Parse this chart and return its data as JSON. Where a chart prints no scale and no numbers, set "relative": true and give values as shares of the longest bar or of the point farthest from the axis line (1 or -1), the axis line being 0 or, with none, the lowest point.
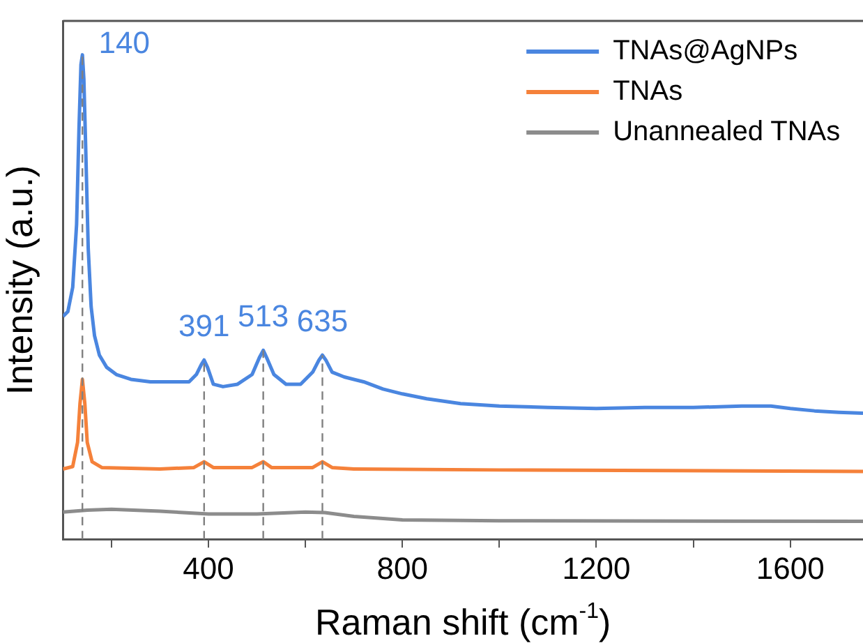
{
  "chart_data": {
    "type": "line",
    "relative": true,
    "xlabel": "Raman shift (cm$^{-1}$)",
    "ylabel": "Intensity (a.u.)",
    "xlim": [
      100,
      1750
    ],
    "xticks": [
      {
        "value": 200,
        "label": null
      },
      400,
      {
        "value": 600,
        "label": null
      },
      800,
      {
        "value": 1000,
        "label": null
      },
      1200,
      {
        "value": 1400,
        "label": null
      },
      1600
    ],
    "legend": "top right",
    "marker": "none",
    "line_style": "solid",
    "grid": false,
    "series": [
      {
        "name": "TNAs@AgNPs",
        "color": "#4a86e0",
        "x": [
          100,
          110,
          120,
          128,
          133,
          137,
          140,
          143,
          147,
          152,
          158,
          165,
          175,
          190,
          210,
          240,
          280,
          320,
          360,
          375,
          385,
          391,
          398,
          410,
          430,
          460,
          490,
          505,
          513,
          520,
          535,
          560,
          590,
          615,
          628,
          635,
          642,
          655,
          680,
          720,
          760,
          800,
          850,
          920,
          1000,
          1100,
          1200,
          1300,
          1400,
          1500,
          1560,
          1600,
          1650,
          1700,
          1750
        ],
        "values": [
          0.46,
          0.47,
          0.52,
          0.65,
          0.85,
          0.98,
          1.0,
          0.95,
          0.8,
          0.6,
          0.48,
          0.42,
          0.38,
          0.355,
          0.34,
          0.33,
          0.325,
          0.325,
          0.325,
          0.34,
          0.36,
          0.37,
          0.355,
          0.32,
          0.315,
          0.32,
          0.34,
          0.375,
          0.39,
          0.375,
          0.34,
          0.32,
          0.32,
          0.345,
          0.37,
          0.38,
          0.37,
          0.345,
          0.335,
          0.325,
          0.31,
          0.3,
          0.29,
          0.28,
          0.275,
          0.272,
          0.27,
          0.272,
          0.272,
          0.275,
          0.275,
          0.27,
          0.265,
          0.262,
          0.26
        ]
      },
      {
        "name": "TNAs",
        "color": "#f5813a",
        "x": [
          100,
          120,
          130,
          135,
          140,
          145,
          150,
          160,
          180,
          300,
          370,
          391,
          410,
          490,
          513,
          530,
          615,
          635,
          655,
          700,
          1000,
          1750
        ],
        "values": [
          0.145,
          0.15,
          0.2,
          0.28,
          0.33,
          0.28,
          0.2,
          0.16,
          0.148,
          0.145,
          0.148,
          0.16,
          0.148,
          0.148,
          0.16,
          0.148,
          0.148,
          0.16,
          0.148,
          0.145,
          0.143,
          0.14
        ]
      },
      {
        "name": "Unannealed TNAs",
        "color": "#8c8c8c",
        "x": [
          100,
          150,
          200,
          300,
          400,
          500,
          600,
          640,
          700,
          800,
          1000,
          1750
        ],
        "values": [
          0.056,
          0.06,
          0.062,
          0.058,
          0.052,
          0.052,
          0.056,
          0.055,
          0.047,
          0.04,
          0.038,
          0.037
        ]
      }
    ],
    "ref_lines": [
      {
        "axis": "x",
        "value": 140,
        "label": "140",
        "color": "#808080",
        "line_style": "dashed"
      },
      {
        "axis": "x",
        "value": 391,
        "label": "391",
        "color": "#808080",
        "line_style": "dashed"
      },
      {
        "axis": "x",
        "value": 513,
        "label": "513",
        "color": "#808080",
        "line_style": "dashed"
      },
      {
        "axis": "x",
        "value": 635,
        "label": "635",
        "color": "#808080",
        "line_style": "dashed"
      }
    ]
  }
}
